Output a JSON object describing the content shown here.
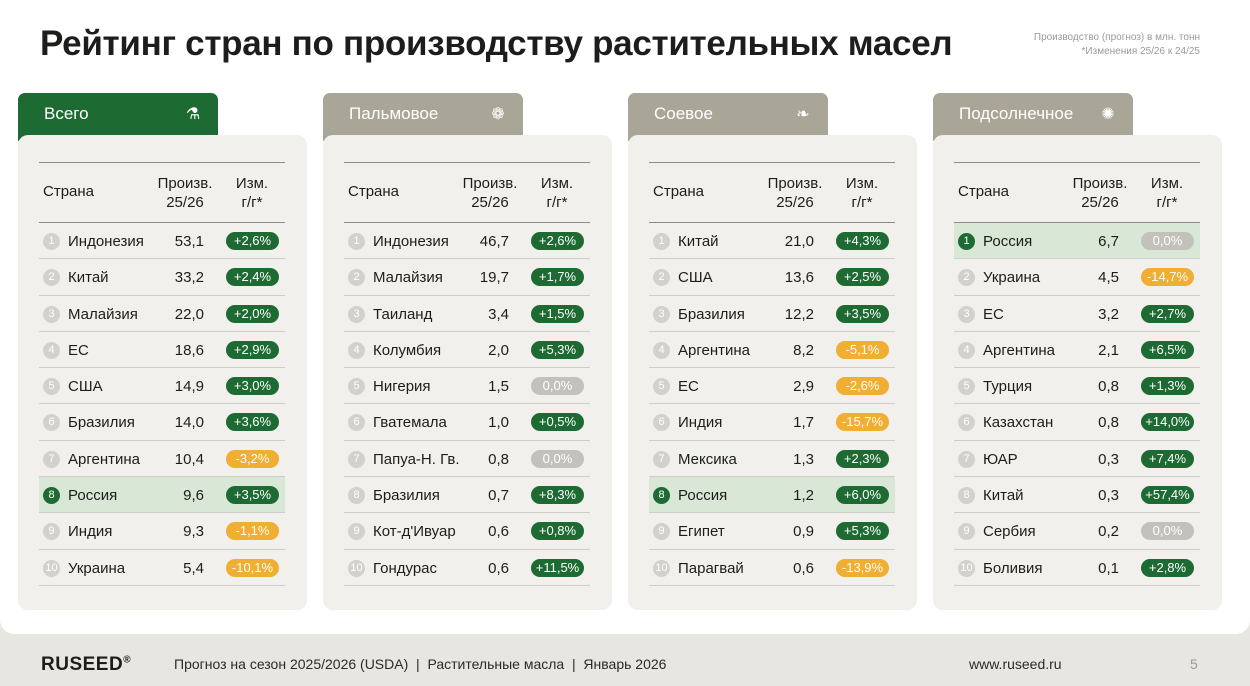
{
  "title": "Рейтинг стран по производству растительных масел",
  "note": {
    "line1": "Производство (прогноз) в млн. тонн",
    "line2": "*Изменения 25/26 к 24/25"
  },
  "colors": {
    "active_tab": "#1d6b32",
    "inactive_tab": "#a9a597",
    "positive": "#1d6b32",
    "negative": "#f0ae33",
    "zero": "#c3c1bb",
    "highlight_row": "#d9e7d6"
  },
  "headers": {
    "country": "Страна",
    "prod_line1": "Произв.",
    "prod_line2": "25/26",
    "chg_line1": "Изм.",
    "chg_line2": "г/г*"
  },
  "panels": [
    {
      "label": "Всего",
      "icon": "oil-bottle-icon",
      "active": true,
      "rows": [
        {
          "rank": "1",
          "country": "Индонезия",
          "value": "53,1",
          "change": "+2,6%",
          "kind": "pos"
        },
        {
          "rank": "2",
          "country": "Китай",
          "value": "33,2",
          "change": "+2,4%",
          "kind": "pos"
        },
        {
          "rank": "3",
          "country": "Малайзия",
          "value": "22,0",
          "change": "+2,0%",
          "kind": "pos"
        },
        {
          "rank": "4",
          "country": "ЕС",
          "value": "18,6",
          "change": "+2,9%",
          "kind": "pos"
        },
        {
          "rank": "5",
          "country": "США",
          "value": "14,9",
          "change": "+3,0%",
          "kind": "pos"
        },
        {
          "rank": "6",
          "country": "Бразилия",
          "value": "14,0",
          "change": "+3,6%",
          "kind": "pos"
        },
        {
          "rank": "7",
          "country": "Аргентина",
          "value": "10,4",
          "change": "-3,2%",
          "kind": "neg"
        },
        {
          "rank": "8",
          "country": "Россия",
          "value": "9,6",
          "change": "+3,5%",
          "kind": "pos",
          "highlight": true
        },
        {
          "rank": "9",
          "country": "Индия",
          "value": "9,3",
          "change": "-1,1%",
          "kind": "neg"
        },
        {
          "rank": "10",
          "country": "Украина",
          "value": "5,4",
          "change": "-10,1%",
          "kind": "neg"
        }
      ]
    },
    {
      "label": "Пальмовое",
      "icon": "palm-icon",
      "active": false,
      "rows": [
        {
          "rank": "1",
          "country": "Индонезия",
          "value": "46,7",
          "change": "+2,6%",
          "kind": "pos"
        },
        {
          "rank": "2",
          "country": "Малайзия",
          "value": "19,7",
          "change": "+1,7%",
          "kind": "pos"
        },
        {
          "rank": "3",
          "country": "Таиланд",
          "value": "3,4",
          "change": "+1,5%",
          "kind": "pos"
        },
        {
          "rank": "4",
          "country": "Колумбия",
          "value": "2,0",
          "change": "+5,3%",
          "kind": "pos"
        },
        {
          "rank": "5",
          "country": "Нигерия",
          "value": "1,5",
          "change": "0,0%",
          "kind": "zero"
        },
        {
          "rank": "6",
          "country": "Гватемала",
          "value": "1,0",
          "change": "+0,5%",
          "kind": "pos"
        },
        {
          "rank": "7",
          "country": "Папуа-Н. Гв.",
          "value": "0,8",
          "change": "0,0%",
          "kind": "zero"
        },
        {
          "rank": "8",
          "country": "Бразилия",
          "value": "0,7",
          "change": "+8,3%",
          "kind": "pos"
        },
        {
          "rank": "9",
          "country": "Кот-д'Ивуар",
          "value": "0,6",
          "change": "+0,8%",
          "kind": "pos"
        },
        {
          "rank": "10",
          "country": "Гондурас",
          "value": "0,6",
          "change": "+11,5%",
          "kind": "pos"
        }
      ]
    },
    {
      "label": "Соевое",
      "icon": "soy-leaf-icon",
      "active": false,
      "rows": [
        {
          "rank": "1",
          "country": "Китай",
          "value": "21,0",
          "change": "+4,3%",
          "kind": "pos"
        },
        {
          "rank": "2",
          "country": "США",
          "value": "13,6",
          "change": "+2,5%",
          "kind": "pos"
        },
        {
          "rank": "3",
          "country": "Бразилия",
          "value": "12,2",
          "change": "+3,5%",
          "kind": "pos"
        },
        {
          "rank": "4",
          "country": "Аргентина",
          "value": "8,2",
          "change": "-5,1%",
          "kind": "neg"
        },
        {
          "rank": "5",
          "country": "ЕС",
          "value": "2,9",
          "change": "-2,6%",
          "kind": "neg"
        },
        {
          "rank": "6",
          "country": "Индия",
          "value": "1,7",
          "change": "-15,7%",
          "kind": "neg"
        },
        {
          "rank": "7",
          "country": "Мексика",
          "value": "1,3",
          "change": "+2,3%",
          "kind": "pos"
        },
        {
          "rank": "8",
          "country": "Россия",
          "value": "1,2",
          "change": "+6,0%",
          "kind": "pos",
          "highlight": true
        },
        {
          "rank": "9",
          "country": "Египет",
          "value": "0,9",
          "change": "+5,3%",
          "kind": "pos"
        },
        {
          "rank": "10",
          "country": "Парагвай",
          "value": "0,6",
          "change": "-13,9%",
          "kind": "neg"
        }
      ]
    },
    {
      "label": "Подсолнечное",
      "icon": "sunflower-icon",
      "active": false,
      "rows": [
        {
          "rank": "1",
          "country": "Россия",
          "value": "6,7",
          "change": "0,0%",
          "kind": "zero",
          "highlight": true
        },
        {
          "rank": "2",
          "country": "Украина",
          "value": "4,5",
          "change": "-14,7%",
          "kind": "neg"
        },
        {
          "rank": "3",
          "country": "ЕС",
          "value": "3,2",
          "change": "+2,7%",
          "kind": "pos"
        },
        {
          "rank": "4",
          "country": "Аргентина",
          "value": "2,1",
          "change": "+6,5%",
          "kind": "pos"
        },
        {
          "rank": "5",
          "country": "Турция",
          "value": "0,8",
          "change": "+1,3%",
          "kind": "pos"
        },
        {
          "rank": "6",
          "country": "Казахстан",
          "value": "0,8",
          "change": "+14,0%",
          "kind": "pos"
        },
        {
          "rank": "7",
          "country": "ЮАР",
          "value": "0,3",
          "change": "+7,4%",
          "kind": "pos"
        },
        {
          "rank": "8",
          "country": "Китай",
          "value": "0,3",
          "change": "+57,4%",
          "kind": "pos"
        },
        {
          "rank": "9",
          "country": "Сербия",
          "value": "0,2",
          "change": "0,0%",
          "kind": "zero"
        },
        {
          "rank": "10",
          "country": "Боливия",
          "value": "0,1",
          "change": "+2,8%",
          "kind": "pos"
        }
      ]
    }
  ],
  "footer": {
    "brand": "RUSEED",
    "brand_mark": "®",
    "line": "Прогноз на сезон 2025/2026 (USDA)  |  Растительные масла  |  Январь 2026",
    "url": "www.ruseed.ru",
    "page": "5"
  }
}
